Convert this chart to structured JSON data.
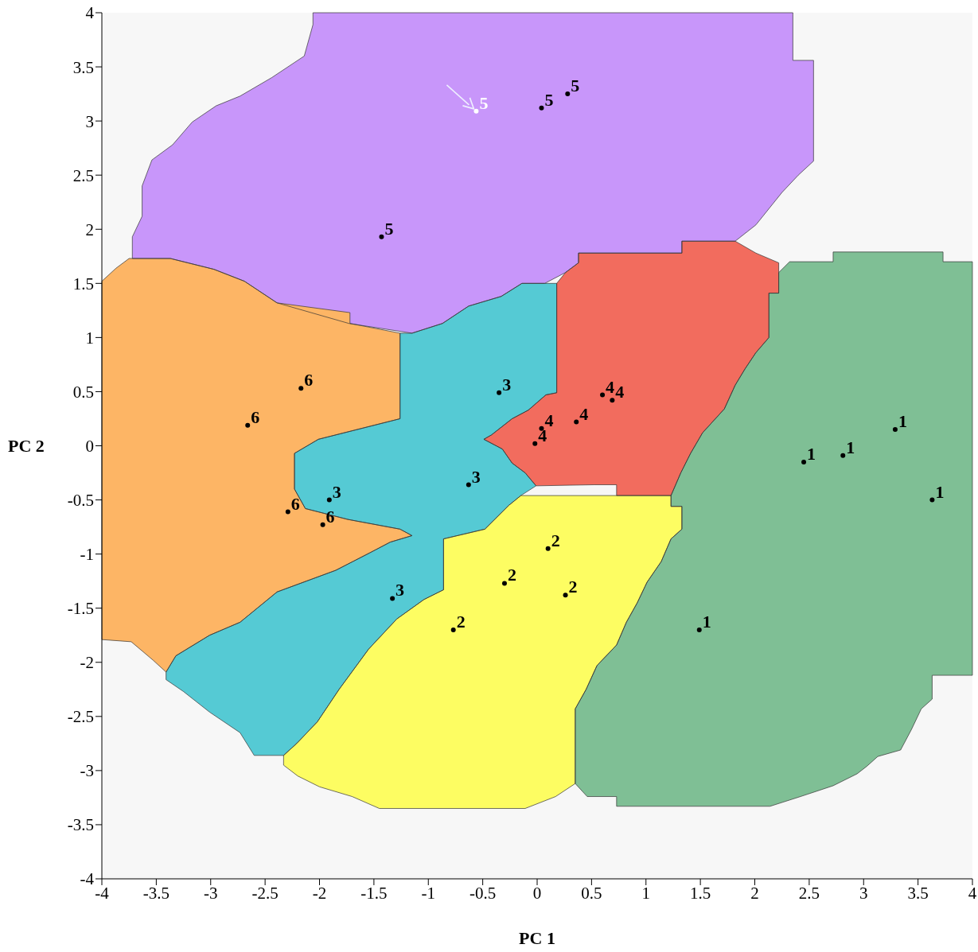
{
  "chart_data": {
    "type": "scatter",
    "xlabel": "PC 1",
    "ylabel": "PC 2",
    "xlim": [
      -4,
      4
    ],
    "ylim": [
      -4,
      4
    ],
    "xticks": [
      -4,
      -3.5,
      -3,
      -2.5,
      -2,
      -1.5,
      -1,
      -0.5,
      0,
      0.5,
      1,
      1.5,
      2,
      2.5,
      3,
      3.5,
      4
    ],
    "yticks": [
      -4,
      -3.5,
      -3,
      -2.5,
      -2,
      -1.5,
      -1,
      -0.5,
      0,
      0.5,
      1,
      1.5,
      2,
      2.5,
      3,
      3.5,
      4
    ],
    "grid": false,
    "legend": false,
    "series": [
      {
        "type": "area",
        "color": "#c896fa",
        "x": [
          -2.06,
          2.35,
          2.35,
          2.54,
          2.54,
          2.4,
          2.25,
          2.01,
          1.82,
          1.33,
          1.33,
          0.38,
          0.38,
          0.26,
          0.07,
          -0.14,
          -0.33,
          -0.63,
          -0.87,
          -1.15,
          -1.73,
          -2.39,
          -2.69,
          -2.97,
          -3.37,
          -3.72,
          -3.72,
          -3.63,
          -3.63,
          -3.54,
          -3.35,
          -3.17,
          -2.95,
          -2.73,
          -2.44,
          -2.14,
          -2.06
        ],
        "values": [
          4,
          4,
          3.56,
          3.56,
          2.63,
          2.5,
          2.34,
          2.04,
          1.89,
          1.89,
          1.78,
          1.78,
          1.69,
          1.6,
          1.5,
          1.5,
          1.38,
          1.29,
          1.13,
          1.04,
          1.13,
          1.32,
          1.52,
          1.63,
          1.73,
          1.73,
          1.93,
          2.12,
          2.4,
          2.64,
          2.78,
          2.99,
          3.14,
          3.23,
          3.4,
          3.6,
          3.89
        ]
      },
      {
        "type": "area",
        "color": "#fdb565",
        "x": [
          -4,
          -3.87,
          -3.75,
          -3.37,
          -2.97,
          -2.69,
          -2.39,
          -1.72,
          -1.72,
          -1.26,
          -1.26,
          -2.01,
          -2.23,
          -2.23,
          -2.13,
          -1.74,
          -1.26,
          -1.15,
          -1.35,
          -1.54,
          -1.85,
          -2.39,
          -2.73,
          -3.01,
          -3.32,
          -3.41,
          -3.53,
          -3.73,
          -4
        ],
        "values": [
          1.52,
          1.64,
          1.73,
          1.73,
          1.63,
          1.52,
          1.32,
          1.23,
          1.13,
          1.04,
          0.25,
          0.06,
          -0.07,
          -0.4,
          -0.58,
          -0.68,
          -0.77,
          -0.83,
          -0.89,
          -0.99,
          -1.15,
          -1.35,
          -1.63,
          -1.75,
          -1.94,
          -2.09,
          -1.98,
          -1.81,
          -1.79
        ]
      },
      {
        "type": "area",
        "color": "#55cad4",
        "x": [
          -1.26,
          -1.15,
          -0.87,
          -0.63,
          -0.33,
          -0.14,
          0.07,
          0.18,
          0.18,
          0.08,
          -0.08,
          -0.23,
          -0.42,
          -0.49,
          -0.32,
          -0.23,
          -0.11,
          -0.01,
          -0.15,
          -0.26,
          -0.48,
          -0.86,
          -0.86,
          -1.04,
          -1.29,
          -1.55,
          -1.82,
          -2.02,
          -2.21,
          -2.33,
          -2.6,
          -2.73,
          -3.01,
          -3.25,
          -3.41,
          -3.41,
          -3.32,
          -3.01,
          -2.73,
          -2.39,
          -1.85,
          -1.54,
          -1.35,
          -1.15,
          -1.26,
          -1.74,
          -2.13,
          -2.23,
          -2.23,
          -2.01,
          -1.26
        ],
        "values": [
          1.04,
          1.04,
          1.13,
          1.29,
          1.38,
          1.5,
          1.5,
          1.5,
          0.49,
          0.47,
          0.33,
          0.25,
          0.1,
          0.06,
          -0.03,
          -0.16,
          -0.25,
          -0.37,
          -0.46,
          -0.55,
          -0.77,
          -0.86,
          -1.33,
          -1.42,
          -1.6,
          -1.88,
          -2.25,
          -2.55,
          -2.75,
          -2.86,
          -2.86,
          -2.65,
          -2.46,
          -2.27,
          -2.16,
          -2.09,
          -1.94,
          -1.75,
          -1.63,
          -1.35,
          -1.15,
          -0.99,
          -0.89,
          -0.83,
          -0.77,
          -0.68,
          -0.58,
          -0.4,
          -0.07,
          0.06,
          0.25
        ]
      },
      {
        "type": "area",
        "color": "#f26c5e",
        "x": [
          0.18,
          0.26,
          0.38,
          0.38,
          1.33,
          1.33,
          1.82,
          2.01,
          2.22,
          2.22,
          2.13,
          2.13,
          2.01,
          1.91,
          1.82,
          1.72,
          1.52,
          1.41,
          1.32,
          1.23,
          0.73,
          0.73,
          0.52,
          -0.01,
          -0.11,
          -0.23,
          -0.32,
          -0.49,
          -0.42,
          -0.23,
          -0.08,
          0.08,
          0.18
        ],
        "values": [
          1.5,
          1.6,
          1.69,
          1.78,
          1.78,
          1.89,
          1.89,
          1.78,
          1.69,
          1.41,
          1.41,
          1.0,
          0.86,
          0.71,
          0.56,
          0.34,
          0.12,
          -0.07,
          -0.25,
          -0.46,
          -0.46,
          -0.36,
          -0.36,
          -0.37,
          -0.25,
          -0.16,
          -0.03,
          0.06,
          0.1,
          0.25,
          0.33,
          0.47,
          0.49
        ]
      },
      {
        "type": "area",
        "color": "#fdfd62",
        "x": [
          -0.15,
          1.23,
          1.23,
          1.33,
          1.33,
          1.23,
          1.14,
          1.01,
          0.92,
          0.82,
          0.73,
          0.55,
          0.45,
          0.35,
          0.35,
          0.17,
          -0.11,
          -1.45,
          -1.7,
          -2.0,
          -2.2,
          -2.33,
          -2.33,
          -2.21,
          -2.02,
          -1.82,
          -1.55,
          -1.29,
          -1.04,
          -0.86,
          -0.86,
          -0.48,
          -0.26
        ],
        "values": [
          -0.46,
          -0.46,
          -0.56,
          -0.56,
          -0.77,
          -0.86,
          -1.07,
          -1.26,
          -1.45,
          -1.63,
          -1.84,
          -2.03,
          -2.25,
          -2.43,
          -3.12,
          -3.24,
          -3.35,
          -3.35,
          -3.24,
          -3.15,
          -3.05,
          -2.95,
          -2.86,
          -2.75,
          -2.55,
          -2.25,
          -1.88,
          -1.6,
          -1.42,
          -1.33,
          -0.86,
          -0.77,
          -0.55
        ]
      },
      {
        "type": "area",
        "color": "#7fbf95",
        "x": [
          2.22,
          2.32,
          2.72,
          2.72,
          3.73,
          3.73,
          4,
          4,
          3.63,
          3.63,
          3.53,
          3.44,
          3.34,
          3.13,
          3.03,
          2.94,
          2.72,
          2.42,
          2.14,
          0.73,
          0.73,
          0.46,
          0.35,
          0.35,
          0.45,
          0.55,
          0.73,
          0.82,
          0.92,
          1.01,
          1.14,
          1.23,
          1.33,
          1.33,
          1.23,
          1.23,
          1.32,
          1.41,
          1.52,
          1.72,
          1.82,
          1.91,
          2.01,
          2.13,
          2.13,
          2.22
        ],
        "values": [
          1.6,
          1.7,
          1.7,
          1.79,
          1.79,
          1.7,
          1.7,
          -2.12,
          -2.12,
          -2.34,
          -2.43,
          -2.62,
          -2.81,
          -2.87,
          -2.96,
          -3.03,
          -3.14,
          -3.24,
          -3.33,
          -3.33,
          -3.24,
          -3.24,
          -3.12,
          -2.43,
          -2.25,
          -2.03,
          -1.84,
          -1.63,
          -1.45,
          -1.26,
          -1.07,
          -0.86,
          -0.77,
          -0.56,
          -0.56,
          -0.46,
          -0.25,
          -0.07,
          0.12,
          0.34,
          0.56,
          0.71,
          0.86,
          1.0,
          1.41,
          1.41
        ]
      },
      {
        "name": "1",
        "marker": "circle",
        "color": "#000000",
        "x": [
          2.45,
          2.81,
          3.29,
          3.63,
          1.49
        ],
        "values": [
          -0.15,
          -0.09,
          0.15,
          -0.5,
          -1.7
        ]
      },
      {
        "name": "2",
        "marker": "circle",
        "color": "#000000",
        "x": [
          0.1,
          -0.3,
          0.26,
          -0.77
        ],
        "values": [
          -0.95,
          -1.27,
          -1.38,
          -1.7
        ]
      },
      {
        "name": "3",
        "marker": "circle",
        "color": "#000000",
        "x": [
          -0.35,
          -0.63,
          -1.91,
          -1.33
        ],
        "values": [
          0.49,
          -0.36,
          -0.5,
          -1.41
        ]
      },
      {
        "name": "4",
        "marker": "circle",
        "color": "#000000",
        "x": [
          0.6,
          0.69,
          0.04,
          0.36,
          -0.02
        ],
        "values": [
          0.47,
          0.42,
          0.16,
          0.22,
          0.02
        ]
      },
      {
        "name": "5",
        "marker": "circle",
        "colors": [
          "#ffffff",
          "#000000",
          "#000000",
          "#000000"
        ],
        "x": [
          -0.56,
          0.04,
          0.28,
          -1.43
        ],
        "values": [
          3.09,
          3.12,
          3.25,
          1.93
        ]
      },
      {
        "name": "6",
        "marker": "circle",
        "color": "#000000",
        "x": [
          -2.17,
          -2.66,
          -2.29,
          -1.97
        ],
        "values": [
          0.53,
          0.19,
          -0.61,
          -0.73
        ]
      }
    ]
  }
}
